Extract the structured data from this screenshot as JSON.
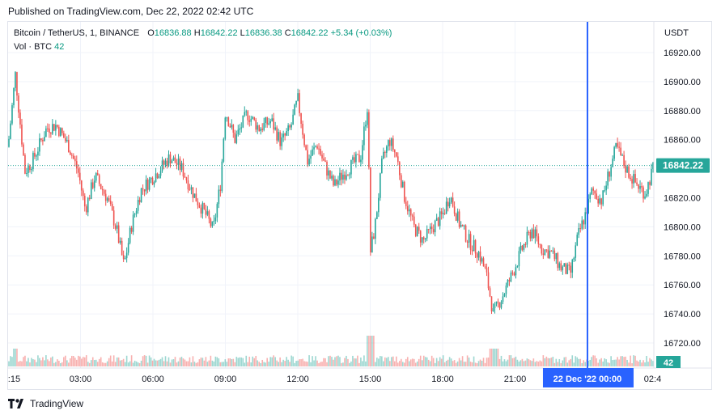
{
  "header": {
    "published": "Published on TradingView.com, Dec 22, 2022 02:42 UTC"
  },
  "legend": {
    "symbol": "Bitcoin / TetherUS, 1, BINANCE",
    "o_label": "O",
    "o_value": "16836.88",
    "h_label": "H",
    "h_value": "16842.22",
    "l_label": "L",
    "l_value": "16836.38",
    "c_label": "C",
    "c_value": "16842.22",
    "change": "+5.34 (+0.03%)",
    "vol_label": "Vol · BTC",
    "vol_value": "42"
  },
  "footer": {
    "brand": "TradingView"
  },
  "colors": {
    "up": "#26a69a",
    "down": "#ef5350",
    "crosshair": "#2962ff",
    "grid": "#f0f3fa"
  },
  "chart_data": {
    "type": "candlestick",
    "currency": "USDT",
    "y_ticks": [
      "16920.00",
      "16900.00",
      "16880.00",
      "16860.00",
      "16840.00",
      "16820.00",
      "16800.00",
      "16780.00",
      "16760.00",
      "16740.00",
      "16720.00"
    ],
    "ylim": [
      16712,
      16932
    ],
    "x_ticks": [
      ":15",
      "03:00",
      "06:00",
      "09:00",
      "12:00",
      "15:00",
      "18:00",
      "21:00",
      "02:4"
    ],
    "x_tick_hours": [
      0.25,
      3,
      6,
      9,
      12,
      15,
      18,
      21,
      26.7
    ],
    "xlim_hours": [
      0,
      26.75
    ],
    "last_price": "16842.22",
    "last_volume": "42",
    "crosshair_time_label": "22 Dec '22   00:00",
    "crosshair_hour": 24,
    "price_path": [
      {
        "h": 0.0,
        "p": 16855
      },
      {
        "h": 0.3,
        "p": 16905
      },
      {
        "h": 0.7,
        "p": 16838
      },
      {
        "h": 1.0,
        "p": 16845
      },
      {
        "h": 1.6,
        "p": 16868
      },
      {
        "h": 2.0,
        "p": 16870
      },
      {
        "h": 2.5,
        "p": 16856
      },
      {
        "h": 2.9,
        "p": 16838
      },
      {
        "h": 3.2,
        "p": 16812
      },
      {
        "h": 3.6,
        "p": 16835
      },
      {
        "h": 4.1,
        "p": 16820
      },
      {
        "h": 4.5,
        "p": 16798
      },
      {
        "h": 4.8,
        "p": 16773
      },
      {
        "h": 5.1,
        "p": 16800
      },
      {
        "h": 5.5,
        "p": 16825
      },
      {
        "h": 6.2,
        "p": 16838
      },
      {
        "h": 6.7,
        "p": 16848
      },
      {
        "h": 7.2,
        "p": 16840
      },
      {
        "h": 7.7,
        "p": 16822
      },
      {
        "h": 8.2,
        "p": 16808
      },
      {
        "h": 8.5,
        "p": 16798
      },
      {
        "h": 8.8,
        "p": 16830
      },
      {
        "h": 9.0,
        "p": 16880
      },
      {
        "h": 9.4,
        "p": 16860
      },
      {
        "h": 9.9,
        "p": 16878
      },
      {
        "h": 10.4,
        "p": 16868
      },
      {
        "h": 10.9,
        "p": 16873
      },
      {
        "h": 11.3,
        "p": 16858
      },
      {
        "h": 11.7,
        "p": 16868
      },
      {
        "h": 12.0,
        "p": 16888
      },
      {
        "h": 12.4,
        "p": 16845
      },
      {
        "h": 12.8,
        "p": 16857
      },
      {
        "h": 13.1,
        "p": 16843
      },
      {
        "h": 13.5,
        "p": 16828
      },
      {
        "h": 13.8,
        "p": 16835
      },
      {
        "h": 14.2,
        "p": 16842
      },
      {
        "h": 14.6,
        "p": 16848
      },
      {
        "h": 14.9,
        "p": 16885
      },
      {
        "h": 15.0,
        "p": 16782
      },
      {
        "h": 15.2,
        "p": 16800
      },
      {
        "h": 15.5,
        "p": 16845
      },
      {
        "h": 15.8,
        "p": 16860
      },
      {
        "h": 16.1,
        "p": 16848
      },
      {
        "h": 16.4,
        "p": 16822
      },
      {
        "h": 16.8,
        "p": 16800
      },
      {
        "h": 17.2,
        "p": 16790
      },
      {
        "h": 17.6,
        "p": 16800
      },
      {
        "h": 18.0,
        "p": 16808
      },
      {
        "h": 18.3,
        "p": 16822
      },
      {
        "h": 18.7,
        "p": 16802
      },
      {
        "h": 19.1,
        "p": 16790
      },
      {
        "h": 19.5,
        "p": 16782
      },
      {
        "h": 19.8,
        "p": 16768
      },
      {
        "h": 20.1,
        "p": 16740
      },
      {
        "h": 20.5,
        "p": 16753
      },
      {
        "h": 20.9,
        "p": 16768
      },
      {
        "h": 21.3,
        "p": 16785
      },
      {
        "h": 21.7,
        "p": 16798
      },
      {
        "h": 22.1,
        "p": 16785
      },
      {
        "h": 22.5,
        "p": 16782
      },
      {
        "h": 22.9,
        "p": 16772
      },
      {
        "h": 23.3,
        "p": 16768
      },
      {
        "h": 23.6,
        "p": 16793
      },
      {
        "h": 23.9,
        "p": 16808
      },
      {
        "h": 24.2,
        "p": 16825
      },
      {
        "h": 24.6,
        "p": 16818
      },
      {
        "h": 24.9,
        "p": 16838
      },
      {
        "h": 25.2,
        "p": 16855
      },
      {
        "h": 25.6,
        "p": 16840
      },
      {
        "h": 26.0,
        "p": 16830
      },
      {
        "h": 26.4,
        "p": 16823
      },
      {
        "h": 26.75,
        "p": 16842
      }
    ]
  }
}
